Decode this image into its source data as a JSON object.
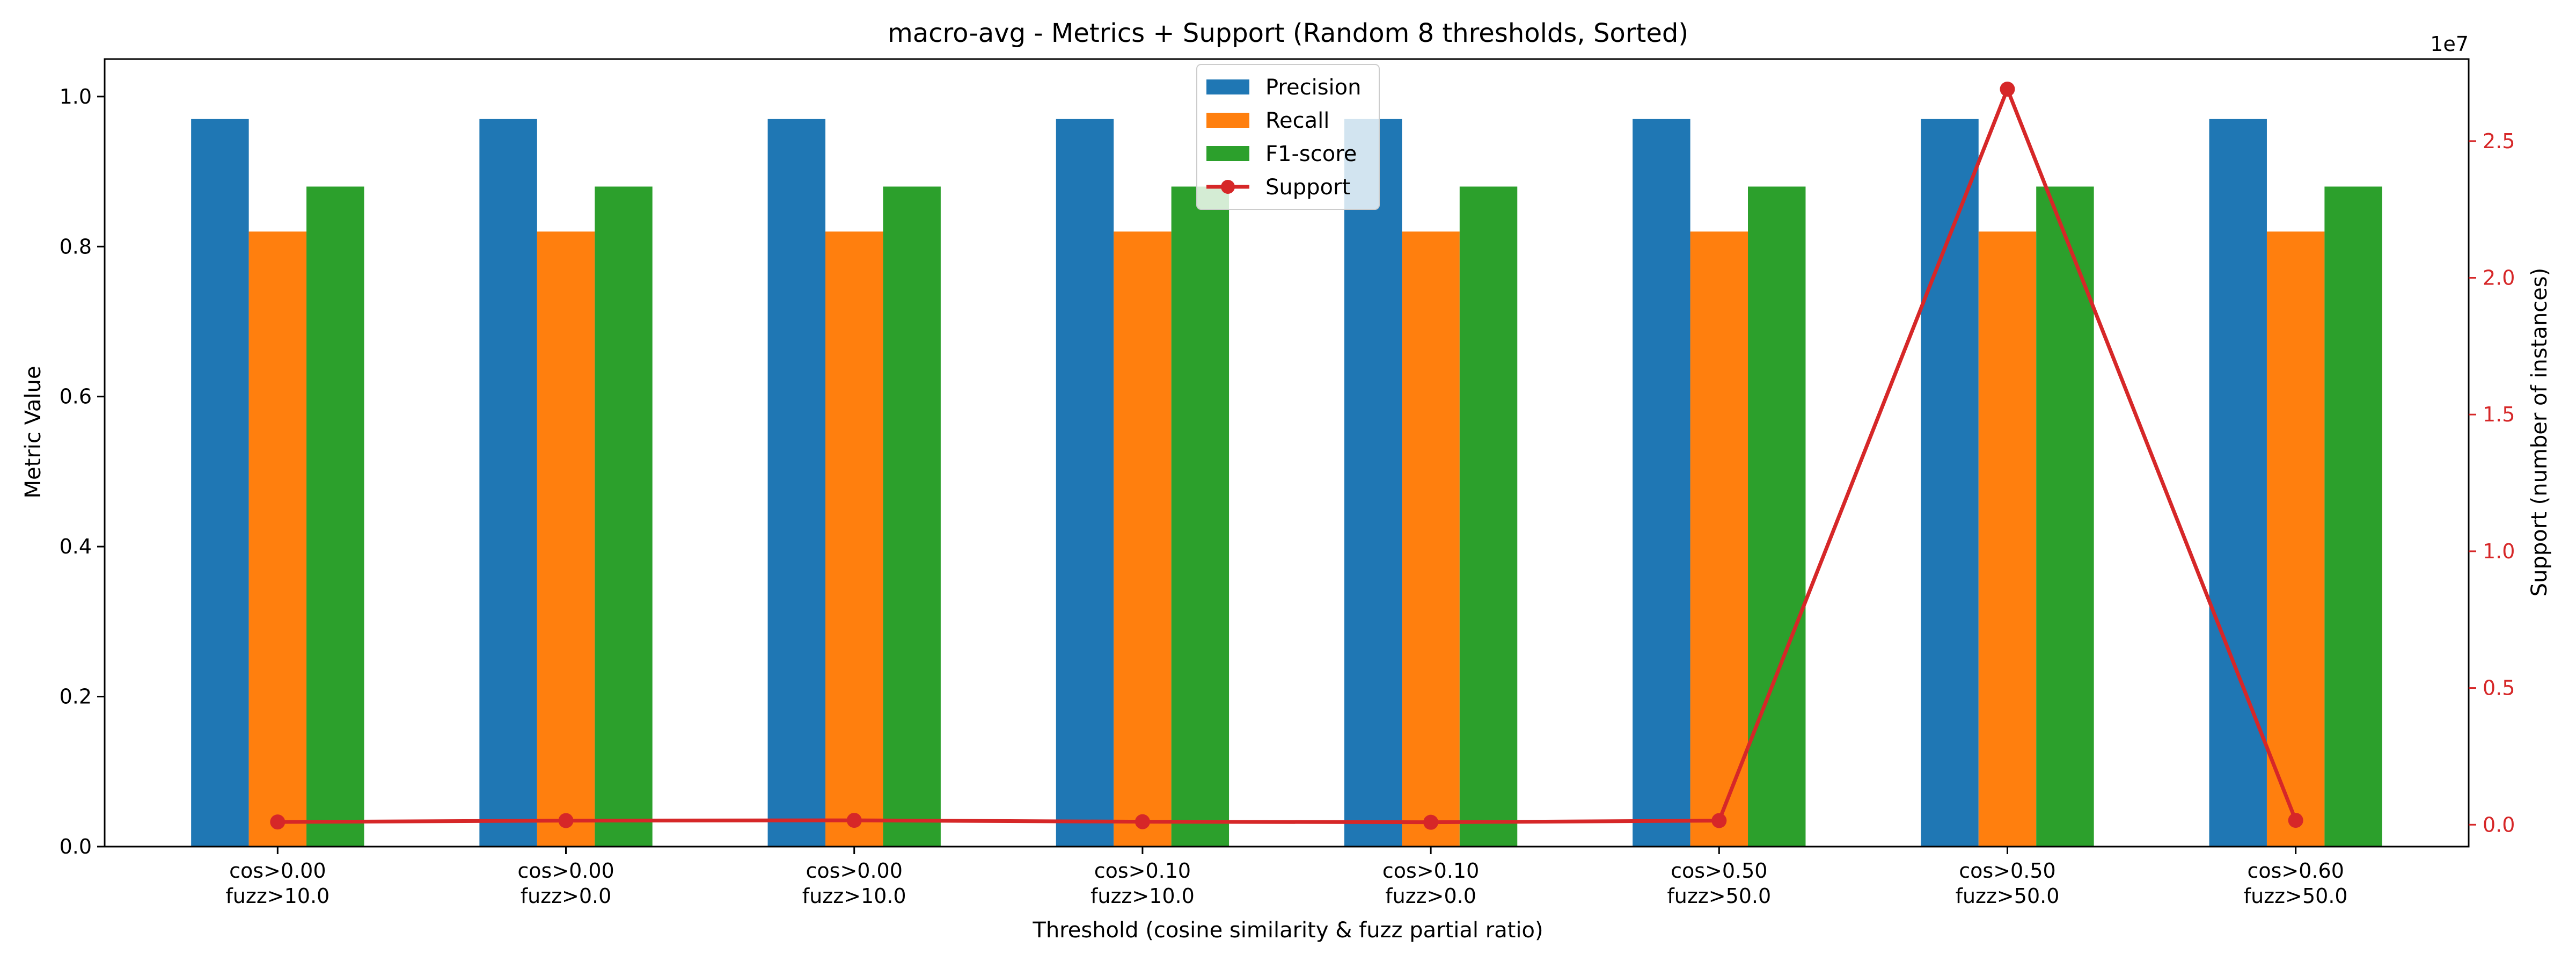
{
  "chart_data": {
    "type": "bar",
    "title": "macro-avg - Metrics + Support (Random 8 thresholds, Sorted)",
    "xlabel": "Threshold (cosine similarity & fuzz partial ratio)",
    "ylabel": "Metric Value",
    "y2label": "Support (number of instances)",
    "y2_offset_text": "1e7",
    "categories": [
      [
        "cos>0.00",
        "fuzz>10.0"
      ],
      [
        "cos>0.00",
        "fuzz>0.0"
      ],
      [
        "cos>0.00",
        "fuzz>10.0"
      ],
      [
        "cos>0.10",
        "fuzz>10.0"
      ],
      [
        "cos>0.10",
        "fuzz>0.0"
      ],
      [
        "cos>0.50",
        "fuzz>50.0"
      ],
      [
        "cos>0.50",
        "fuzz>50.0"
      ],
      [
        "cos>0.60",
        "fuzz>50.0"
      ]
    ],
    "ylim": [
      0,
      1.05
    ],
    "yticks": [
      0.0,
      0.2,
      0.4,
      0.6,
      0.8,
      1.0
    ],
    "y2lim": [
      -800000,
      28000000
    ],
    "y2ticks": [
      0.0,
      0.5,
      1.0,
      1.5,
      2.0,
      2.5
    ],
    "y2tick_scale": 10000000,
    "grid": false,
    "legend_position": "top-center",
    "series": [
      {
        "name": "Precision",
        "kind": "bar",
        "color": "#1f77b4",
        "values": [
          0.97,
          0.97,
          0.97,
          0.97,
          0.97,
          0.97,
          0.97,
          0.97
        ]
      },
      {
        "name": "Recall",
        "kind": "bar",
        "color": "#ff7f0e",
        "values": [
          0.82,
          0.82,
          0.82,
          0.82,
          0.82,
          0.82,
          0.82,
          0.82
        ]
      },
      {
        "name": "F1-score",
        "kind": "bar",
        "color": "#2ca02c",
        "values": [
          0.88,
          0.88,
          0.88,
          0.88,
          0.88,
          0.88,
          0.88,
          0.88
        ]
      },
      {
        "name": "Support",
        "kind": "line",
        "axis": "right",
        "color": "#d62728",
        "values": [
          100000,
          150000,
          160000,
          110000,
          90000,
          150000,
          26900000,
          160000
        ]
      }
    ]
  }
}
